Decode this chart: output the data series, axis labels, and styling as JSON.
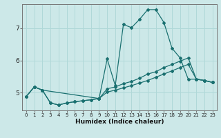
{
  "xlabel": "Humidex (Indice chaleur)",
  "bg_color": "#cce8e8",
  "grid_color": "#b0d8d8",
  "line_color": "#1a7070",
  "xlim": [
    -0.5,
    23.5
  ],
  "ylim": [
    4.45,
    7.75
  ],
  "yticks": [
    5,
    6,
    7
  ],
  "xticks": [
    0,
    1,
    2,
    3,
    4,
    5,
    6,
    7,
    8,
    9,
    10,
    11,
    12,
    13,
    14,
    15,
    16,
    17,
    18,
    19,
    20,
    21,
    22,
    23
  ],
  "line1_x": [
    0,
    1,
    2,
    3,
    4,
    5,
    6,
    7,
    8,
    9,
    10,
    11,
    12,
    13,
    14,
    15,
    16,
    17,
    18,
    19,
    20,
    21,
    22,
    23
  ],
  "line1_y": [
    4.88,
    5.18,
    5.08,
    4.68,
    4.62,
    4.68,
    4.72,
    4.75,
    4.78,
    4.82,
    6.05,
    5.22,
    7.12,
    7.02,
    7.28,
    7.58,
    7.58,
    7.18,
    6.38,
    6.08,
    5.42,
    5.42,
    5.38,
    5.32
  ],
  "line2_x": [
    0,
    1,
    2,
    3,
    4,
    5,
    6,
    7,
    8,
    9,
    10,
    11,
    12,
    13,
    14,
    15,
    16,
    17,
    18,
    19,
    20,
    21,
    22,
    23
  ],
  "line2_y": [
    4.88,
    5.18,
    5.08,
    4.68,
    4.62,
    4.68,
    4.72,
    4.75,
    4.78,
    4.82,
    5.12,
    5.18,
    5.28,
    5.35,
    5.45,
    5.58,
    5.65,
    5.78,
    5.88,
    5.98,
    6.08,
    5.42,
    5.38,
    5.32
  ],
  "line3_x": [
    0,
    1,
    2,
    9,
    10,
    11,
    12,
    13,
    14,
    15,
    16,
    17,
    18,
    19,
    20,
    21,
    22,
    23
  ],
  "line3_y": [
    4.88,
    5.18,
    5.08,
    4.82,
    5.02,
    5.08,
    5.15,
    5.22,
    5.3,
    5.38,
    5.48,
    5.58,
    5.68,
    5.78,
    5.88,
    5.42,
    5.38,
    5.32
  ]
}
